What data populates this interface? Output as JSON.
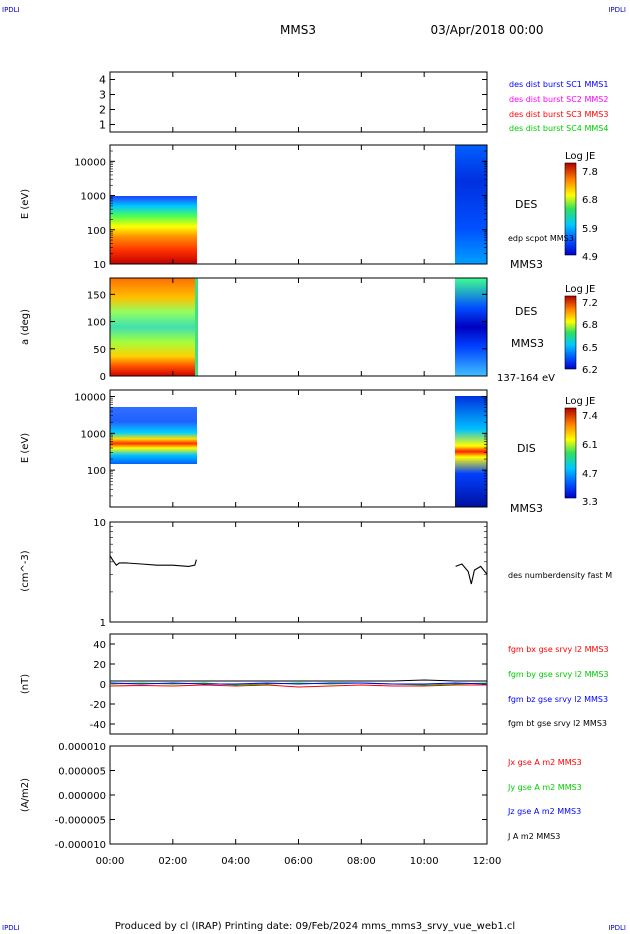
{
  "header": {
    "corner_tl": "IPDLI",
    "corner_tr": "IPDLI",
    "corner_bl": "IPDLI",
    "corner_br": "IPDLI",
    "spacecraft": "MMS3",
    "datetime": "03/Apr/2018 00:00"
  },
  "footer": {
    "credit": "Produced by cl (IRAP)   Printing date: 09/Feb/2024   mms_mms3_srvy_vue_web1.cl"
  },
  "colors": {
    "c1": "#0000ff",
    "c2": "#ff00ff",
    "c3": "#ff0000",
    "c4": "#00cc00",
    "bx": "#ff0000",
    "by": "#00cc00",
    "bz": "#0000ff",
    "bt": "#000000"
  },
  "chart_data": [
    {
      "type": "heatmap",
      "id": "availability",
      "ylabel": "",
      "ylim": [
        0.5,
        4.5
      ],
      "yticks": [
        "1",
        "2",
        "3",
        "4"
      ],
      "legend": [
        {
          "name": "des dist burst SC1 MMS1",
          "color": "#0000ff"
        },
        {
          "name": "des dist burst SC2 MMS2",
          "color": "#ff00ff"
        },
        {
          "name": "des dist burst SC3 MMS3",
          "color": "#ff0000"
        },
        {
          "name": "des dist burst SC4 MMS4",
          "color": "#00cc00"
        }
      ]
    },
    {
      "type": "heatmap",
      "id": "des-energy",
      "ylabel": "E (eV)",
      "yscale": "log",
      "ylim": [
        10,
        30000
      ],
      "yticks": [
        "10",
        "100",
        "1000",
        "10000"
      ],
      "colorbar": {
        "title": "Log JE",
        "ticks": [
          "7.8",
          "6.8",
          "5.9",
          "4.9"
        ],
        "range": [
          4.9,
          7.8
        ]
      },
      "labels": [
        "DES",
        "edp scpot MMS3",
        "MMS3"
      ],
      "segments": [
        {
          "start_h": 0.0,
          "end_h": 2.75
        },
        {
          "start_h": 11.0,
          "end_h": 12.0
        }
      ]
    },
    {
      "type": "heatmap",
      "id": "des-pitch",
      "ylabel": "a (deg)",
      "ylim": [
        0,
        180
      ],
      "yticks": [
        "0",
        "50",
        "100",
        "150"
      ],
      "colorbar": {
        "title": "Log JE",
        "ticks": [
          "7.2",
          "6.8",
          "6.5",
          "6.2"
        ],
        "range": [
          6.2,
          7.2
        ]
      },
      "labels": [
        "DES",
        "MMS3",
        "137-164 eV"
      ],
      "segments": [
        {
          "start_h": 0.0,
          "end_h": 2.75
        },
        {
          "start_h": 11.0,
          "end_h": 12.0
        }
      ]
    },
    {
      "type": "heatmap",
      "id": "dis-energy",
      "ylabel": "E (eV)",
      "yscale": "log",
      "ylim": [
        10,
        15000
      ],
      "yticks": [
        "100",
        "1000",
        "10000"
      ],
      "colorbar": {
        "title": "Log JE",
        "ticks": [
          "7.4",
          "6.1",
          "4.7",
          "3.3"
        ],
        "range": [
          3.3,
          7.4
        ]
      },
      "labels": [
        "DIS",
        "MMS3"
      ],
      "segments": [
        {
          "start_h": 0.0,
          "end_h": 2.75
        },
        {
          "start_h": 11.0,
          "end_h": 12.0
        }
      ]
    },
    {
      "type": "line",
      "id": "density",
      "ylabel": "(cm^-3)",
      "yscale": "log",
      "ylim": [
        1,
        10
      ],
      "yticks": [
        "1",
        "10"
      ],
      "series": [
        {
          "name": "des numberdensity fast M",
          "color": "#000000",
          "x": [
            0.0,
            0.1,
            0.2,
            0.3,
            0.5,
            1.0,
            1.5,
            2.0,
            2.5,
            2.7,
            2.75,
            11.0,
            11.2,
            11.4,
            11.5,
            11.6,
            11.8,
            12.0
          ],
          "y": [
            4.6,
            4.1,
            3.7,
            3.9,
            3.9,
            3.8,
            3.7,
            3.7,
            3.6,
            3.7,
            4.2,
            3.6,
            3.8,
            3.2,
            2.4,
            3.3,
            3.6,
            3.0
          ]
        }
      ]
    },
    {
      "type": "line",
      "id": "fgm",
      "ylabel": "(nT)",
      "ylim": [
        -50,
        50
      ],
      "yticks": [
        "-40",
        "-20",
        "0",
        "20",
        "40"
      ],
      "series": [
        {
          "name": "fgm bx gse srvy l2 MMS3",
          "color": "#ff0000",
          "x": [
            0,
            1,
            2,
            3,
            4,
            5,
            6,
            7,
            8,
            9,
            10,
            11,
            12
          ],
          "y": [
            -2,
            -1.5,
            -2,
            -1,
            -2,
            -1,
            -3,
            -2,
            -1,
            -2,
            -2,
            -1,
            -1
          ]
        },
        {
          "name": "fgm by gse srvy l2 MMS3",
          "color": "#00cc00",
          "x": [
            0,
            1,
            2,
            3,
            4,
            5,
            6,
            7,
            8,
            9,
            10,
            11,
            12
          ],
          "y": [
            0,
            1,
            0,
            1,
            -1,
            0,
            1,
            0,
            1,
            0,
            -1,
            0,
            1
          ]
        },
        {
          "name": "fgm bz gse srvy l2 MMS3",
          "color": "#0000ff",
          "x": [
            0,
            1,
            2,
            3,
            4,
            5,
            6,
            7,
            8,
            9,
            10,
            11,
            12
          ],
          "y": [
            1,
            0,
            1,
            0,
            0,
            1,
            0,
            1,
            1,
            0,
            0,
            1,
            0
          ]
        },
        {
          "name": "fgm bt gse srvy l2 MMS3",
          "color": "#000000",
          "x": [
            0,
            1,
            2,
            3,
            4,
            5,
            6,
            7,
            8,
            9,
            10,
            11,
            12
          ],
          "y": [
            3,
            3,
            3,
            3,
            3,
            3,
            3,
            3,
            3,
            3,
            4,
            3,
            3
          ]
        }
      ]
    },
    {
      "type": "line",
      "id": "current",
      "ylabel": "(A/m2)",
      "ylim": [
        -1e-05,
        1e-05
      ],
      "yticks": [
        "-0.000010",
        "-0.000005",
        "0.000000",
        "0.000005",
        "0.000010"
      ],
      "series": [
        {
          "name": "Jx gse A m2 MMS3",
          "color": "#ff0000",
          "x": [
            0,
            12
          ],
          "y": [
            0,
            0
          ]
        },
        {
          "name": "Jy gse A m2 MMS3",
          "color": "#00cc00",
          "x": [
            0,
            12
          ],
          "y": [
            0,
            0
          ]
        },
        {
          "name": "Jz gse A m2 MMS3",
          "color": "#0000ff",
          "x": [
            0,
            12
          ],
          "y": [
            0,
            0
          ]
        },
        {
          "name": "J A m2 MMS3",
          "color": "#000000",
          "x": [
            0,
            12
          ],
          "y": [
            0,
            0
          ]
        }
      ]
    }
  ],
  "xaxis": {
    "xlim": [
      0,
      12
    ],
    "ticks": [
      "00:00",
      "02:00",
      "04:00",
      "06:00",
      "08:00",
      "10:00",
      "12:00"
    ]
  }
}
